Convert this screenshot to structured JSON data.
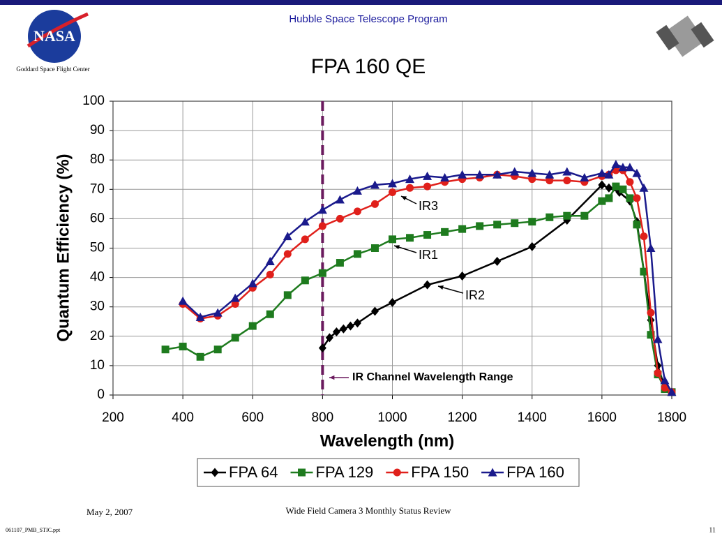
{
  "slide": {
    "header": "Hubble Space Telescope Program",
    "logo_text": "NASA",
    "center": "Goddard Space Flight Center",
    "date": "May 2, 2007",
    "footer": "Wide Field Camera 3 Monthly Status Review",
    "file": "061107_PMB_STIC.ppt",
    "page": "11"
  },
  "chart_data": {
    "type": "line",
    "title": "FPA 160 QE",
    "x_label": "Wavelength (nm)",
    "y_label": "Quantum Efficiency (%)",
    "xlim": [
      200,
      1800
    ],
    "xticks": [
      200,
      400,
      600,
      800,
      1000,
      1200,
      1400,
      1600,
      1800
    ],
    "ylim": [
      0,
      100
    ],
    "yticks": [
      0,
      10,
      20,
      30,
      40,
      50,
      60,
      70,
      80,
      90,
      100
    ],
    "grid": true,
    "vline": 800,
    "annotations": [
      "IR3",
      "IR1",
      "IR2",
      "IR Channel Wavelength Range"
    ],
    "series": [
      {
        "name": "FPA 64",
        "color": "#000000",
        "marker": "diamond",
        "x": [
          800,
          820,
          840,
          860,
          880,
          900,
          950,
          1000,
          1100,
          1200,
          1300,
          1400,
          1500,
          1600,
          1620,
          1650,
          1680,
          1700,
          1740,
          1760,
          1780,
          1800
        ],
        "values": [
          16,
          19.5,
          21.5,
          22.5,
          23.5,
          24.5,
          28.5,
          31.5,
          37.5,
          40.5,
          45.5,
          50.5,
          59.5,
          71.5,
          70.5,
          69,
          66,
          59,
          25.5,
          10,
          2.5,
          1
        ]
      },
      {
        "name": "FPA 129",
        "color": "#1e7b1e",
        "marker": "square",
        "x": [
          350,
          400,
          450,
          500,
          550,
          600,
          650,
          700,
          750,
          800,
          850,
          900,
          950,
          1000,
          1050,
          1100,
          1150,
          1200,
          1250,
          1300,
          1350,
          1400,
          1450,
          1500,
          1550,
          1600,
          1620,
          1640,
          1660,
          1680,
          1700,
          1720,
          1740,
          1760,
          1780,
          1800
        ],
        "values": [
          15.5,
          16.5,
          13,
          15.5,
          19.5,
          23.5,
          27.5,
          34,
          39,
          41.5,
          45,
          48,
          50,
          53,
          53.5,
          54.5,
          55.5,
          56.5,
          57.5,
          58,
          58.5,
          59,
          60.5,
          61,
          61,
          66,
          67,
          71,
          70,
          67,
          58,
          42,
          20.5,
          7,
          2,
          1
        ]
      },
      {
        "name": "FPA 150",
        "color": "#e0201b",
        "marker": "circle",
        "x": [
          400,
          450,
          500,
          550,
          600,
          650,
          700,
          750,
          800,
          850,
          900,
          950,
          1000,
          1050,
          1100,
          1150,
          1200,
          1250,
          1300,
          1350,
          1400,
          1450,
          1500,
          1550,
          1600,
          1620,
          1640,
          1660,
          1680,
          1700,
          1720,
          1740,
          1760,
          1780,
          1800
        ],
        "values": [
          31,
          26,
          27,
          31,
          36.5,
          41,
          48,
          53,
          57.5,
          60,
          62.5,
          65,
          69,
          70.5,
          71,
          72.5,
          73.5,
          74,
          75,
          74.5,
          73.5,
          73,
          73,
          72.5,
          74.5,
          75,
          76.5,
          76.5,
          72.5,
          67,
          54,
          28,
          7.5,
          2.5,
          1
        ]
      },
      {
        "name": "FPA 160",
        "color": "#1a1a8c",
        "marker": "triangle",
        "x": [
          400,
          450,
          500,
          550,
          600,
          650,
          700,
          750,
          800,
          850,
          900,
          950,
          1000,
          1050,
          1100,
          1150,
          1200,
          1250,
          1300,
          1350,
          1400,
          1450,
          1500,
          1550,
          1600,
          1620,
          1640,
          1660,
          1680,
          1700,
          1720,
          1740,
          1760,
          1780,
          1800
        ],
        "values": [
          32,
          26.5,
          28,
          33,
          38,
          45.5,
          54,
          59,
          63,
          66.5,
          69.5,
          71.5,
          72,
          73.5,
          74.5,
          74,
          75,
          75,
          75,
          76,
          75.5,
          75,
          76,
          74,
          75.5,
          75,
          78.5,
          77.5,
          77.5,
          75.5,
          70.5,
          50,
          19,
          5,
          1
        ]
      }
    ]
  }
}
